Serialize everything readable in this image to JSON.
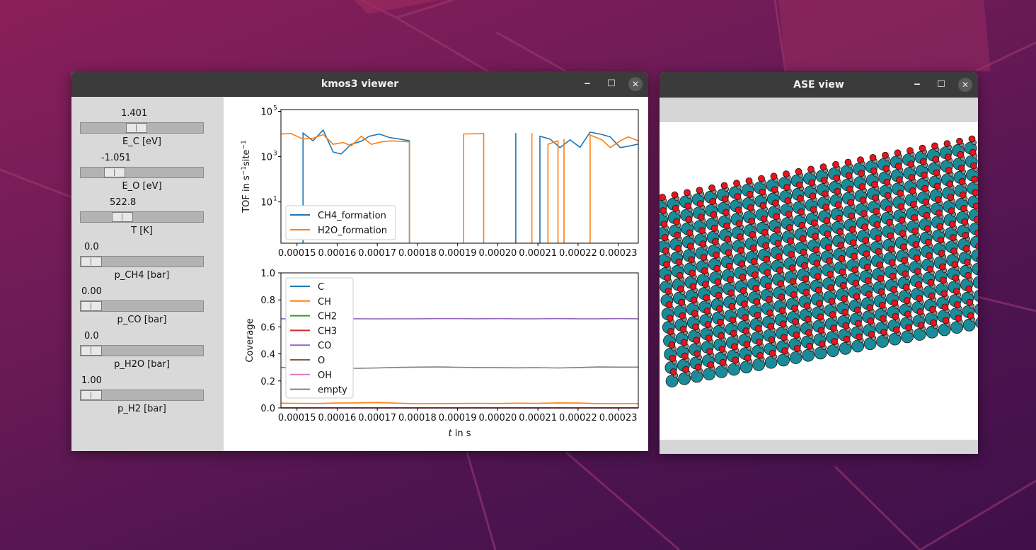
{
  "kmos_window": {
    "title": "kmos3 viewer",
    "sliders": [
      {
        "id": "E_C",
        "value": "1.401",
        "label": "E_C [eV]",
        "fraction": 0.45
      },
      {
        "id": "E_O",
        "value": "-1.051",
        "label": "E_O [eV]",
        "fraction": 0.23
      },
      {
        "id": "T",
        "value": "522.8",
        "label": "T [K]",
        "fraction": 0.31
      },
      {
        "id": "p_CH4",
        "value": "0.0",
        "label": "p_CH4 [bar]",
        "fraction": 0.0
      },
      {
        "id": "p_CO",
        "value": "0.00",
        "label": "p_CO [bar]",
        "fraction": 0.0
      },
      {
        "id": "p_H2O",
        "value": "0.0",
        "label": "p_H2O [bar]",
        "fraction": 0.0
      },
      {
        "id": "p_H2",
        "value": "1.00",
        "label": "p_H2 [bar]",
        "fraction": 0.0
      }
    ]
  },
  "ase_window": {
    "title": "ASE view"
  },
  "icons": {
    "minimize": "minimize-icon",
    "maximize": "maximize-icon",
    "close": "close-icon"
  },
  "chart_data": [
    {
      "type": "line",
      "ylabel_parts": [
        "TOF in s",
        "−1",
        "site",
        "−1"
      ],
      "xlabel": "",
      "yscale": "log",
      "xlim": [
        0.000146,
        0.000235
      ],
      "ylim": [
        0.15,
        120000
      ],
      "x_ticks": [
        "0.00015",
        "0.00016",
        "0.00017",
        "0.00018",
        "0.00019",
        "0.00020",
        "0.00021",
        "0.00022",
        "0.00023"
      ],
      "x_tick_values": [
        0.00015,
        0.00016,
        0.00017,
        0.00018,
        0.00019,
        0.0002,
        0.00021,
        0.00022,
        0.00023
      ],
      "y_ticks": [
        {
          "base": "10",
          "exp": "1",
          "value": 10
        },
        {
          "base": "10",
          "exp": "3",
          "value": 1000
        },
        {
          "base": "10",
          "exp": "5",
          "value": 100000
        }
      ],
      "legend": "top-left-lower",
      "grid": false,
      "series": [
        {
          "name": "CH4_formation",
          "color": "#1f77b4",
          "segments": [
            [
              [
                0.0001515,
                0.05
              ],
              [
                0.0001515,
                11000
              ],
              [
                0.000154,
                5000
              ],
              [
                0.0001565,
                15000
              ],
              [
                0.000159,
                1600
              ],
              [
                0.000161,
                1300
              ],
              [
                0.0001635,
                3500
              ],
              [
                0.000166,
                4800
              ],
              [
                0.000168,
                8000
              ],
              [
                0.0001705,
                10000
              ],
              [
                0.000173,
                7000
              ],
              [
                0.0001755,
                6000
              ],
              [
                0.000178,
                5000
              ],
              [
                0.000178,
                0.05
              ]
            ],
            [
              [
                0.0002045,
                0.05
              ],
              [
                0.0002045,
                11000
              ],
              [
                0.0002045,
                0.05
              ]
            ],
            [
              [
                0.0002105,
                0.05
              ],
              [
                0.0002105,
                8000
              ],
              [
                0.000213,
                6000
              ],
              [
                0.0002155,
                2500
              ],
              [
                0.000218,
                5500
              ],
              [
                0.0002205,
                2600
              ],
              [
                0.000223,
                12000
              ],
              [
                0.0002255,
                10000
              ],
              [
                0.000228,
                7500
              ],
              [
                0.0002305,
                2500
              ],
              [
                0.000233,
                3000
              ],
              [
                0.000235,
                3600
              ]
            ]
          ]
        },
        {
          "name": "H2O_formation",
          "color": "#ff7f0e",
          "segments": [
            [
              [
                0.000146,
                10000
              ],
              [
                0.0001485,
                10500
              ],
              [
                0.0001515,
                6000
              ],
              [
                0.000154,
                6500
              ],
              [
                0.0001565,
                9500
              ],
              [
                0.000159,
                3500
              ],
              [
                0.0001615,
                4200
              ],
              [
                0.0001635,
                3000
              ],
              [
                0.000166,
                8000
              ],
              [
                0.0001685,
                3500
              ],
              [
                0.000171,
                4500
              ],
              [
                0.0001735,
                5000
              ],
              [
                0.000178,
                4500
              ],
              [
                0.000178,
                0.05
              ]
            ],
            [
              [
                0.0001915,
                0.05
              ],
              [
                0.0001915,
                10000
              ],
              [
                0.0001965,
                10500
              ],
              [
                0.0001965,
                0.05
              ]
            ],
            [
              [
                0.0002085,
                0.05
              ],
              [
                0.0002085,
                11000
              ],
              [
                0.0002085,
                0.05
              ]
            ],
            [
              [
                0.0002125,
                0.05
              ],
              [
                0.0002125,
                3500
              ],
              [
                0.000215,
                5000
              ],
              [
                0.000215,
                0.05
              ]
            ],
            [
              [
                0.0002165,
                0.05
              ],
              [
                0.0002165,
                6000
              ],
              [
                0.0002165,
                0.05
              ]
            ],
            [
              [
                0.000223,
                0.05
              ],
              [
                0.000223,
                9000
              ],
              [
                0.000226,
                5500
              ],
              [
                0.000228,
                2500
              ],
              [
                0.0002305,
                5000
              ],
              [
                0.0002325,
                7500
              ],
              [
                0.000235,
                5000
              ]
            ]
          ]
        }
      ]
    },
    {
      "type": "line",
      "ylabel": "Coverage",
      "xlabel_italic": "t",
      "xlabel_rest": " in s",
      "xlim": [
        0.000146,
        0.000235
      ],
      "ylim": [
        0,
        1.0
      ],
      "x_ticks": [
        "0.00015",
        "0.00016",
        "0.00017",
        "0.00018",
        "0.00019",
        "0.00020",
        "0.00021",
        "0.00022",
        "0.00023"
      ],
      "x_tick_values": [
        0.00015,
        0.00016,
        0.00017,
        0.00018,
        0.00019,
        0.0002,
        0.00021,
        0.00022,
        0.00023
      ],
      "y_ticks": [
        "0.0",
        "0.2",
        "0.4",
        "0.6",
        "0.8",
        "1.0"
      ],
      "y_tick_values": [
        0,
        0.2,
        0.4,
        0.6,
        0.8,
        1.0
      ],
      "legend": "top-left",
      "grid": false,
      "x": [
        0.000146,
        0.00015,
        0.000155,
        0.00016,
        0.000165,
        0.00017,
        0.000175,
        0.00018,
        0.000185,
        0.00019,
        0.000195,
        0.0002,
        0.000205,
        0.00021,
        0.000215,
        0.00022,
        0.000225,
        0.00023,
        0.000235
      ],
      "series": [
        {
          "name": "C",
          "color": "#1f77b4",
          "values": [
            0,
            0,
            0,
            0,
            0,
            0,
            0,
            0,
            0,
            0,
            0,
            0,
            0,
            0,
            0,
            0,
            0,
            0,
            0
          ]
        },
        {
          "name": "CH",
          "color": "#ff7f0e",
          "values": [
            0.035,
            0.034,
            0.033,
            0.036,
            0.037,
            0.04,
            0.035,
            0.031,
            0.032,
            0.033,
            0.034,
            0.033,
            0.035,
            0.034,
            0.037,
            0.036,
            0.032,
            0.031,
            0.032
          ]
        },
        {
          "name": "CH2",
          "color": "#2ca02c",
          "values": [
            0,
            0,
            0,
            0,
            0,
            0,
            0,
            0,
            0,
            0,
            0,
            0,
            0,
            0,
            0,
            0,
            0,
            0,
            0
          ]
        },
        {
          "name": "CH3",
          "color": "#d62728",
          "values": [
            0,
            0,
            0,
            0,
            0,
            0,
            0,
            0,
            0,
            0,
            0,
            0,
            0,
            0,
            0,
            0,
            0,
            0,
            0
          ]
        },
        {
          "name": "CO",
          "color": "#9467bd",
          "values": [
            0.66,
            0.66,
            0.66,
            0.661,
            0.66,
            0.659,
            0.66,
            0.66,
            0.661,
            0.661,
            0.66,
            0.661,
            0.66,
            0.66,
            0.661,
            0.66,
            0.66,
            0.661,
            0.66
          ]
        },
        {
          "name": "O",
          "color": "#8c564b",
          "values": [
            0,
            0,
            0,
            0,
            0,
            0,
            0,
            0,
            0,
            0,
            0,
            0,
            0,
            0,
            0,
            0,
            0,
            0,
            0
          ]
        },
        {
          "name": "OH",
          "color": "#e377c2",
          "values": [
            0,
            0,
            0,
            0,
            0,
            0,
            0,
            0,
            0,
            0,
            0,
            0,
            0,
            0,
            0,
            0,
            0,
            0,
            0
          ]
        },
        {
          "name": "empty",
          "color": "#7f7f7f",
          "values": [
            0.3,
            0.298,
            0.297,
            0.296,
            0.293,
            0.296,
            0.3,
            0.302,
            0.303,
            0.301,
            0.299,
            0.298,
            0.297,
            0.298,
            0.296,
            0.299,
            0.303,
            0.302,
            0.302
          ]
        }
      ]
    }
  ]
}
